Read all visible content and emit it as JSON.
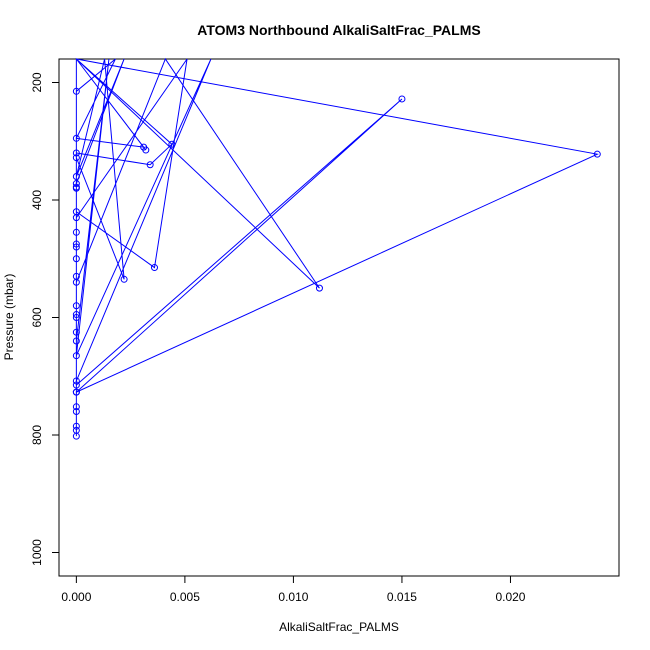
{
  "chart_data": {
    "type": "line",
    "title": "ATOM3 Northbound AlkaliSaltFrac_PALMS",
    "xlabel": "AlkaliSaltFrac_PALMS",
    "ylabel": "Pressure (mbar)",
    "xlim": [
      -0.0008,
      0.025
    ],
    "ylim": [
      1040,
      160
    ],
    "y_reversed": true,
    "grid": false,
    "series_color": "#0000FF",
    "xticks": [
      {
        "value": 0.0,
        "label": "0.000"
      },
      {
        "value": 0.005,
        "label": "0.005"
      },
      {
        "value": 0.01,
        "label": "0.010"
      },
      {
        "value": 0.015,
        "label": "0.015"
      },
      {
        "value": 0.02,
        "label": "0.020"
      }
    ],
    "yticks": [
      {
        "value": 200,
        "label": "200"
      },
      {
        "value": 400,
        "label": "400"
      },
      {
        "value": 600,
        "label": "600"
      },
      {
        "value": 800,
        "label": "800"
      },
      {
        "value": 1000,
        "label": "1000"
      }
    ],
    "series": [
      {
        "x": [
          0,
          0.0018,
          0,
          0.0031,
          0,
          0.0032,
          0,
          0.0044,
          0.0034,
          0,
          0,
          0.0022,
          0.0013,
          0,
          0.0022,
          0,
          0,
          0,
          0,
          0.0036,
          0.0051,
          0,
          0,
          0,
          0,
          0,
          0,
          0,
          0,
          0.0112,
          0.0041,
          0,
          0,
          0,
          0,
          0,
          0,
          0.0015,
          0,
          0.0062,
          0,
          0,
          0.015,
          0,
          0,
          0,
          0,
          0.024,
          0,
          0,
          0,
          0,
          0
        ],
        "y": [
          215,
          160,
          295,
          310,
          160,
          315,
          160,
          305,
          340,
          320,
          328,
          535,
          160,
          360,
          160,
          372,
          378,
          380,
          420,
          515,
          160,
          430,
          455,
          475,
          480,
          500,
          160,
          530,
          160,
          550,
          160,
          540,
          580,
          595,
          600,
          625,
          640,
          160,
          665,
          160,
          708,
          715,
          228,
          727,
          752,
          760,
          160,
          322,
          727,
          785,
          792,
          802,
          160
        ]
      }
    ]
  }
}
